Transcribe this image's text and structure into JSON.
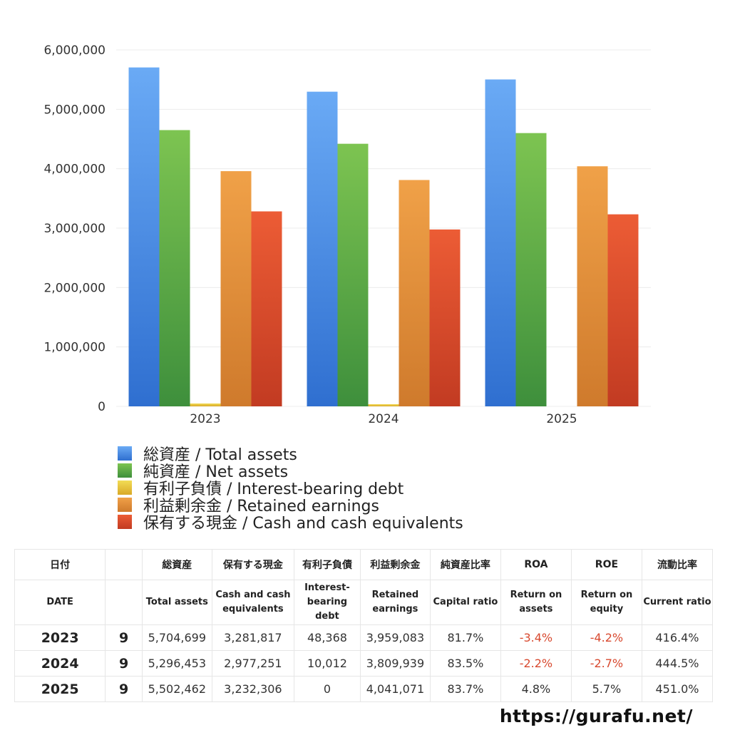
{
  "chart_data": {
    "type": "bar",
    "categories": [
      "2023",
      "2024",
      "2025"
    ],
    "ylim": [
      0,
      6000000
    ],
    "yticks": [
      "0",
      "1,000,000",
      "2,000,000",
      "3,000,000",
      "4,000,000",
      "5,000,000",
      "6,000,000"
    ],
    "ytick_values": [
      0,
      1000000,
      2000000,
      3000000,
      4000000,
      5000000,
      6000000
    ],
    "grid": true,
    "legend_position": "bottom",
    "series": [
      {
        "name": "総資産 / Total assets",
        "color": "#4a8ee6",
        "values": [
          5704699,
          5296453,
          5502462
        ]
      },
      {
        "name": "純資産 / Net assets",
        "color": "#5aae4a",
        "values": [
          4650000,
          4420000,
          4600000
        ]
      },
      {
        "name": "有利子負債 / Interest-bearing debt",
        "color": "#e8c53a",
        "values": [
          48368,
          10012,
          0
        ]
      },
      {
        "name": "利益剰余金 / Retained earnings",
        "color": "#e08c35",
        "values": [
          3959083,
          3809939,
          4041071
        ]
      },
      {
        "name": "保有する現金 /  Cash and cash equivalents",
        "color": "#da4f2d",
        "values": [
          3281817,
          2977251,
          3232306
        ]
      }
    ]
  },
  "table": {
    "header_ja": [
      "日付",
      "",
      "総資産",
      "保有する現金",
      "有利子負債",
      "利益剰余金",
      "純資産比率",
      "ROA",
      "ROE",
      "流動比率"
    ],
    "header_en": [
      "DATE",
      "",
      "Total assets",
      "Cash and cash equivalents",
      "Interest-bearing debt",
      "Retained earnings",
      "Capital ratio",
      "Return on assets",
      "Return on equity",
      "Current ratio"
    ],
    "rows": [
      [
        "2023",
        "9",
        "5,704,699",
        "3,281,817",
        "48,368",
        "3,959,083",
        "81.7%",
        "-3.4%",
        "-4.2%",
        "416.4%"
      ],
      [
        "2024",
        "9",
        "5,296,453",
        "2,977,251",
        "10,012",
        "3,809,939",
        "83.5%",
        "-2.2%",
        "-2.7%",
        "444.5%"
      ],
      [
        "2025",
        "9",
        "5,502,462",
        "3,232,306",
        "0",
        "4,041,071",
        "83.7%",
        "4.8%",
        "5.7%",
        "451.0%"
      ]
    ]
  },
  "footer_url": "https://gurafu.net/"
}
